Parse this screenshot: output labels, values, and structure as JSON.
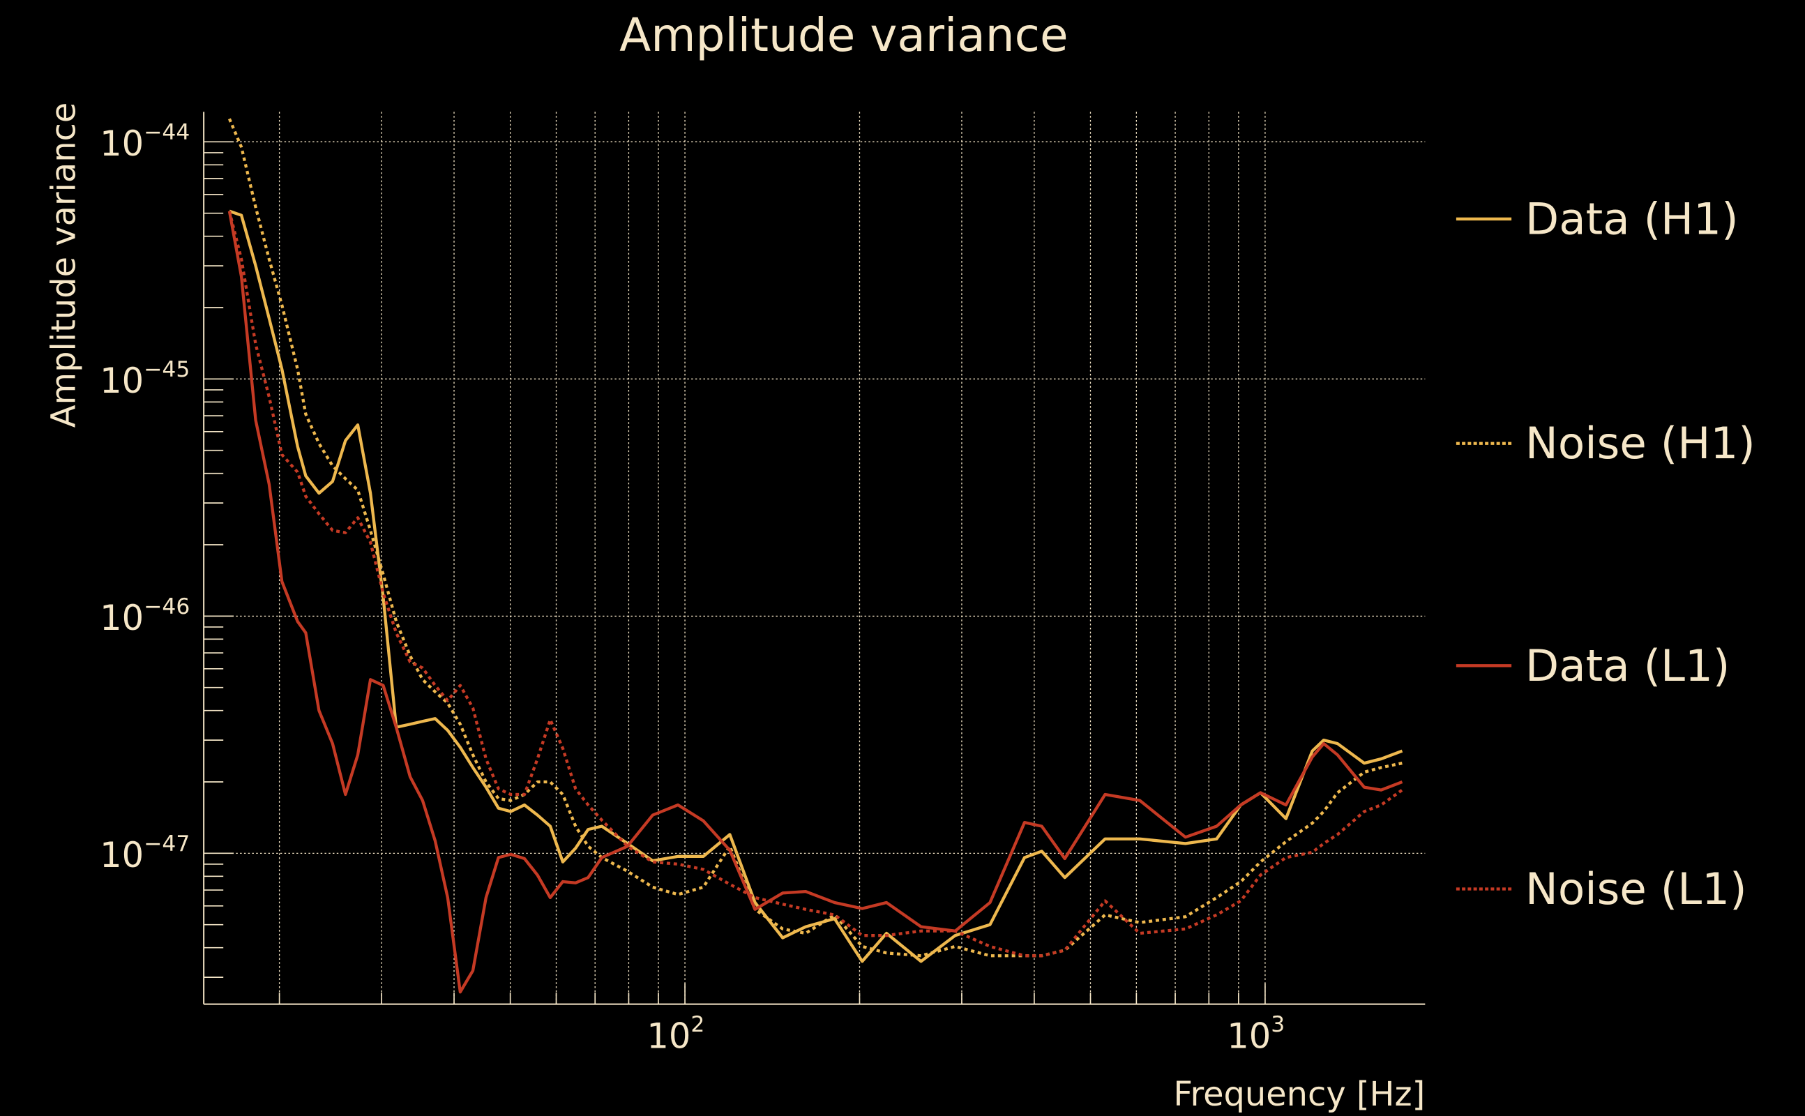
{
  "chart_data": {
    "type": "line",
    "title": "Amplitude variance",
    "xlabel": "Frequency [Hz]",
    "ylabel": "Amplitude variance",
    "xscale": "log",
    "yscale": "log",
    "xlim": [
      14.8,
      1890
    ],
    "ylim": [
      2.3e-48,
      1.35e-44
    ],
    "grid": true,
    "legend_placement": "right",
    "x_ticks": [
      {
        "base": "10",
        "exp": "2",
        "value": 100
      },
      {
        "base": "10",
        "exp": "3",
        "value": 1000
      }
    ],
    "y_ticks": [
      {
        "base": "10",
        "exp": "−44",
        "value": 1e-44
      },
      {
        "base": "10",
        "exp": "−45",
        "value": 1e-45
      },
      {
        "base": "10",
        "exp": "−46",
        "value": 1e-46
      },
      {
        "base": "10",
        "exp": "−47",
        "value": 1e-47
      }
    ],
    "x": [
      16.4,
      17.2,
      18.2,
      19.2,
      20.2,
      21.5,
      22.2,
      23.4,
      24.7,
      26.0,
      27.3,
      28.7,
      30.2,
      31.8,
      33.6,
      35.3,
      37.1,
      39.0,
      41.0,
      43.1,
      45.4,
      47.7,
      50.1,
      52.9,
      55.7,
      58.6,
      61.6,
      64.8,
      68.1,
      71.9,
      79.6,
      88.0,
      97.3,
      107.6,
      119.5,
      132.1,
      147.4,
      161.5,
      181.1,
      202.1,
      222.5,
      255.2,
      292.3,
      335.6,
      384.9,
      412.2,
      451.6,
      530,
      608,
      729,
      825,
      908,
      982,
      1086,
      1206,
      1262,
      1333,
      1482,
      1585,
      1723
    ],
    "series": [
      {
        "name": "Data (H1)",
        "color": "#eeb84e",
        "style": "solid",
        "values": [
          5.1e-45,
          4.9e-45,
          3e-45,
          1.8e-45,
          1.1e-45,
          5.2e-46,
          3.9e-46,
          3.3e-46,
          3.7e-46,
          5.5e-46,
          6.4e-46,
          3.3e-46,
          1.2e-46,
          3.4e-47,
          3.5e-47,
          3.6e-47,
          3.7e-47,
          3.3e-47,
          2.8e-47,
          2.3e-47,
          1.9e-47,
          1.55e-47,
          1.5e-47,
          1.6e-47,
          1.45e-47,
          1.3e-47,
          9.2e-48,
          1.05e-47,
          1.26e-47,
          1.3e-47,
          1.1e-47,
          9.3e-48,
          9.7e-48,
          9.7e-48,
          1.2e-47,
          6.2e-48,
          4.4e-48,
          4.9e-48,
          5.3e-48,
          3.5e-48,
          4.6e-48,
          3.5e-48,
          4.5e-48,
          5e-48,
          9.6e-48,
          1.02e-47,
          7.9e-48,
          1.15e-47,
          1.15e-47,
          1.1e-47,
          1.15e-47,
          1.6e-47,
          1.8e-47,
          1.4e-47,
          2.7e-47,
          3e-47,
          2.9e-47,
          2.4e-47,
          2.5e-47,
          2.7e-47
        ]
      },
      {
        "name": "Noise (H1)",
        "color": "#eeb84e",
        "style": "dotted",
        "values": [
          1.25e-44,
          9.5e-45,
          5.3e-45,
          3.2e-45,
          2.05e-45,
          1.1e-45,
          7.1e-46,
          5.35e-46,
          4.3e-46,
          3.8e-46,
          3.4e-46,
          2.3e-46,
          1.5e-46,
          9.5e-47,
          6.8e-47,
          5.4e-47,
          4.8e-47,
          4.3e-47,
          3.5e-47,
          2.6e-47,
          2e-47,
          1.7e-47,
          1.67e-47,
          1.77e-47,
          2e-47,
          2e-47,
          1.77e-47,
          1.3e-47,
          1.07e-47,
          9.6e-48,
          8.4e-48,
          7.2e-48,
          6.7e-48,
          7.2e-48,
          1.07e-47,
          5.8e-48,
          4.8e-48,
          4.6e-48,
          5.5e-48,
          4.05e-48,
          3.8e-48,
          3.7e-48,
          4.05e-48,
          3.7e-48,
          3.7e-48,
          3.7e-48,
          3.9e-48,
          5.5e-48,
          5.1e-48,
          5.4e-48,
          6.5e-48,
          7.6e-48,
          9.2e-48,
          1.12e-47,
          1.34e-47,
          1.5e-47,
          1.8e-47,
          2.2e-47,
          2.3e-47,
          2.4e-47
        ]
      },
      {
        "name": "Data (L1)",
        "color": "#c53a24",
        "style": "solid",
        "values": [
          5.1e-45,
          2.7e-45,
          6.7e-46,
          3.6e-46,
          1.4e-46,
          9.5e-47,
          8.5e-47,
          4e-47,
          2.9e-47,
          1.77e-47,
          2.6e-47,
          5.4e-47,
          5.1e-47,
          3.4e-47,
          2.1e-47,
          1.67e-47,
          1.13e-47,
          6.5e-48,
          2.6e-48,
          3.2e-48,
          6.5e-48,
          9.6e-48,
          9.9e-48,
          9.5e-48,
          8.1e-48,
          6.5e-48,
          7.6e-48,
          7.5e-48,
          7.9e-48,
          9.6e-48,
          1.07e-47,
          1.45e-47,
          1.6e-47,
          1.37e-47,
          1.03e-47,
          5.8e-48,
          6.8e-48,
          6.9e-48,
          6.2e-48,
          5.85e-48,
          6.2e-48,
          4.9e-48,
          4.7e-48,
          6.2e-48,
          1.35e-47,
          1.3e-47,
          9.5e-48,
          1.77e-47,
          1.67e-47,
          1.17e-47,
          1.3e-47,
          1.6e-47,
          1.8e-47,
          1.6e-47,
          2.55e-47,
          2.9e-47,
          2.6e-47,
          1.9e-47,
          1.85e-47,
          2e-47
        ]
      },
      {
        "name": "Noise (L1)",
        "color": "#c53a24",
        "style": "dotted",
        "values": [
          5.1e-45,
          3.2e-45,
          1.4e-45,
          8.4e-46,
          4.8e-46,
          4.05e-46,
          3.2e-46,
          2.7e-46,
          2.3e-46,
          2.25e-46,
          2.6e-46,
          2.05e-46,
          1.25e-46,
          8.5e-47,
          6.4e-47,
          6.05e-47,
          5.1e-47,
          4.4e-47,
          5.1e-47,
          4.1e-47,
          2.5e-47,
          1.87e-47,
          1.77e-47,
          1.77e-47,
          2.5e-47,
          3.66e-47,
          2.77e-47,
          1.87e-47,
          1.6e-47,
          1.38e-47,
          1.07e-47,
          9.2e-48,
          9e-48,
          8.55e-48,
          7.4e-48,
          6.5e-48,
          6.1e-48,
          5.8e-48,
          5.5e-48,
          4.5e-48,
          4.5e-48,
          4.7e-48,
          4.7e-48,
          4.05e-48,
          3.7e-48,
          3.7e-48,
          3.9e-48,
          6.3e-48,
          4.6e-48,
          4.8e-48,
          5.5e-48,
          6.3e-48,
          8.1e-48,
          9.6e-48,
          1.01e-47,
          1.1e-47,
          1.2e-47,
          1.5e-47,
          1.6e-47,
          1.85e-47
        ]
      }
    ]
  }
}
